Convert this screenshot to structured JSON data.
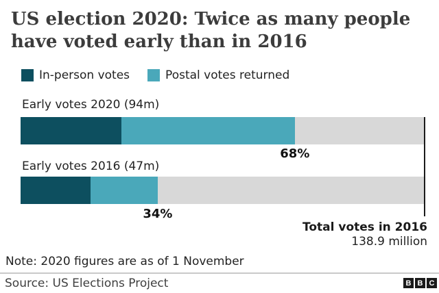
{
  "header": {
    "title_line1": "US election 2020: Twice as many people",
    "title_line2": "have voted early than in 2016"
  },
  "legend": {
    "items": [
      {
        "label": "In-person votes"
      },
      {
        "label": "Postal votes returned"
      }
    ]
  },
  "colors": {
    "in_person": "#0d4f5f",
    "postal": "#4aa8ba",
    "remainder": "#d8d8d8",
    "reference_line": "#1a1a1a"
  },
  "chart_data": {
    "type": "bar",
    "orientation": "horizontal",
    "stacked": true,
    "title": "US election 2020: Twice as many people have voted early than in 2016",
    "legend": [
      "In-person votes",
      "Postal votes returned"
    ],
    "categories": [
      "Early votes 2020 (94m)",
      "Early votes 2016 (47m)"
    ],
    "series": [
      {
        "name": "In-person votes",
        "values_pct_of_2016_total": [
          25.0,
          17.3
        ]
      },
      {
        "name": "Postal votes returned",
        "values_pct_of_2016_total": [
          43.0,
          16.7
        ]
      }
    ],
    "bars": [
      {
        "label": "Early votes 2020 (94m)",
        "total_millions": 94,
        "pct_label": "68%",
        "pct_total": 68,
        "segments_pct": [
          25.0,
          43.0
        ]
      },
      {
        "label": "Early votes 2016 (47m)",
        "total_millions": 47,
        "pct_label": "34%",
        "pct_total": 34,
        "segments_pct": [
          17.3,
          16.7
        ]
      }
    ],
    "scale": {
      "max_millions": 138.9,
      "xlim_pct": [
        0,
        100
      ],
      "grid": false
    },
    "reference": {
      "label": "Total votes in 2016",
      "value": "138.9 million"
    }
  },
  "footer": {
    "note": "Note: 2020 figures are as of 1 November",
    "source": "Source: US Elections Project",
    "logo_letters": [
      "B",
      "B",
      "C"
    ]
  }
}
